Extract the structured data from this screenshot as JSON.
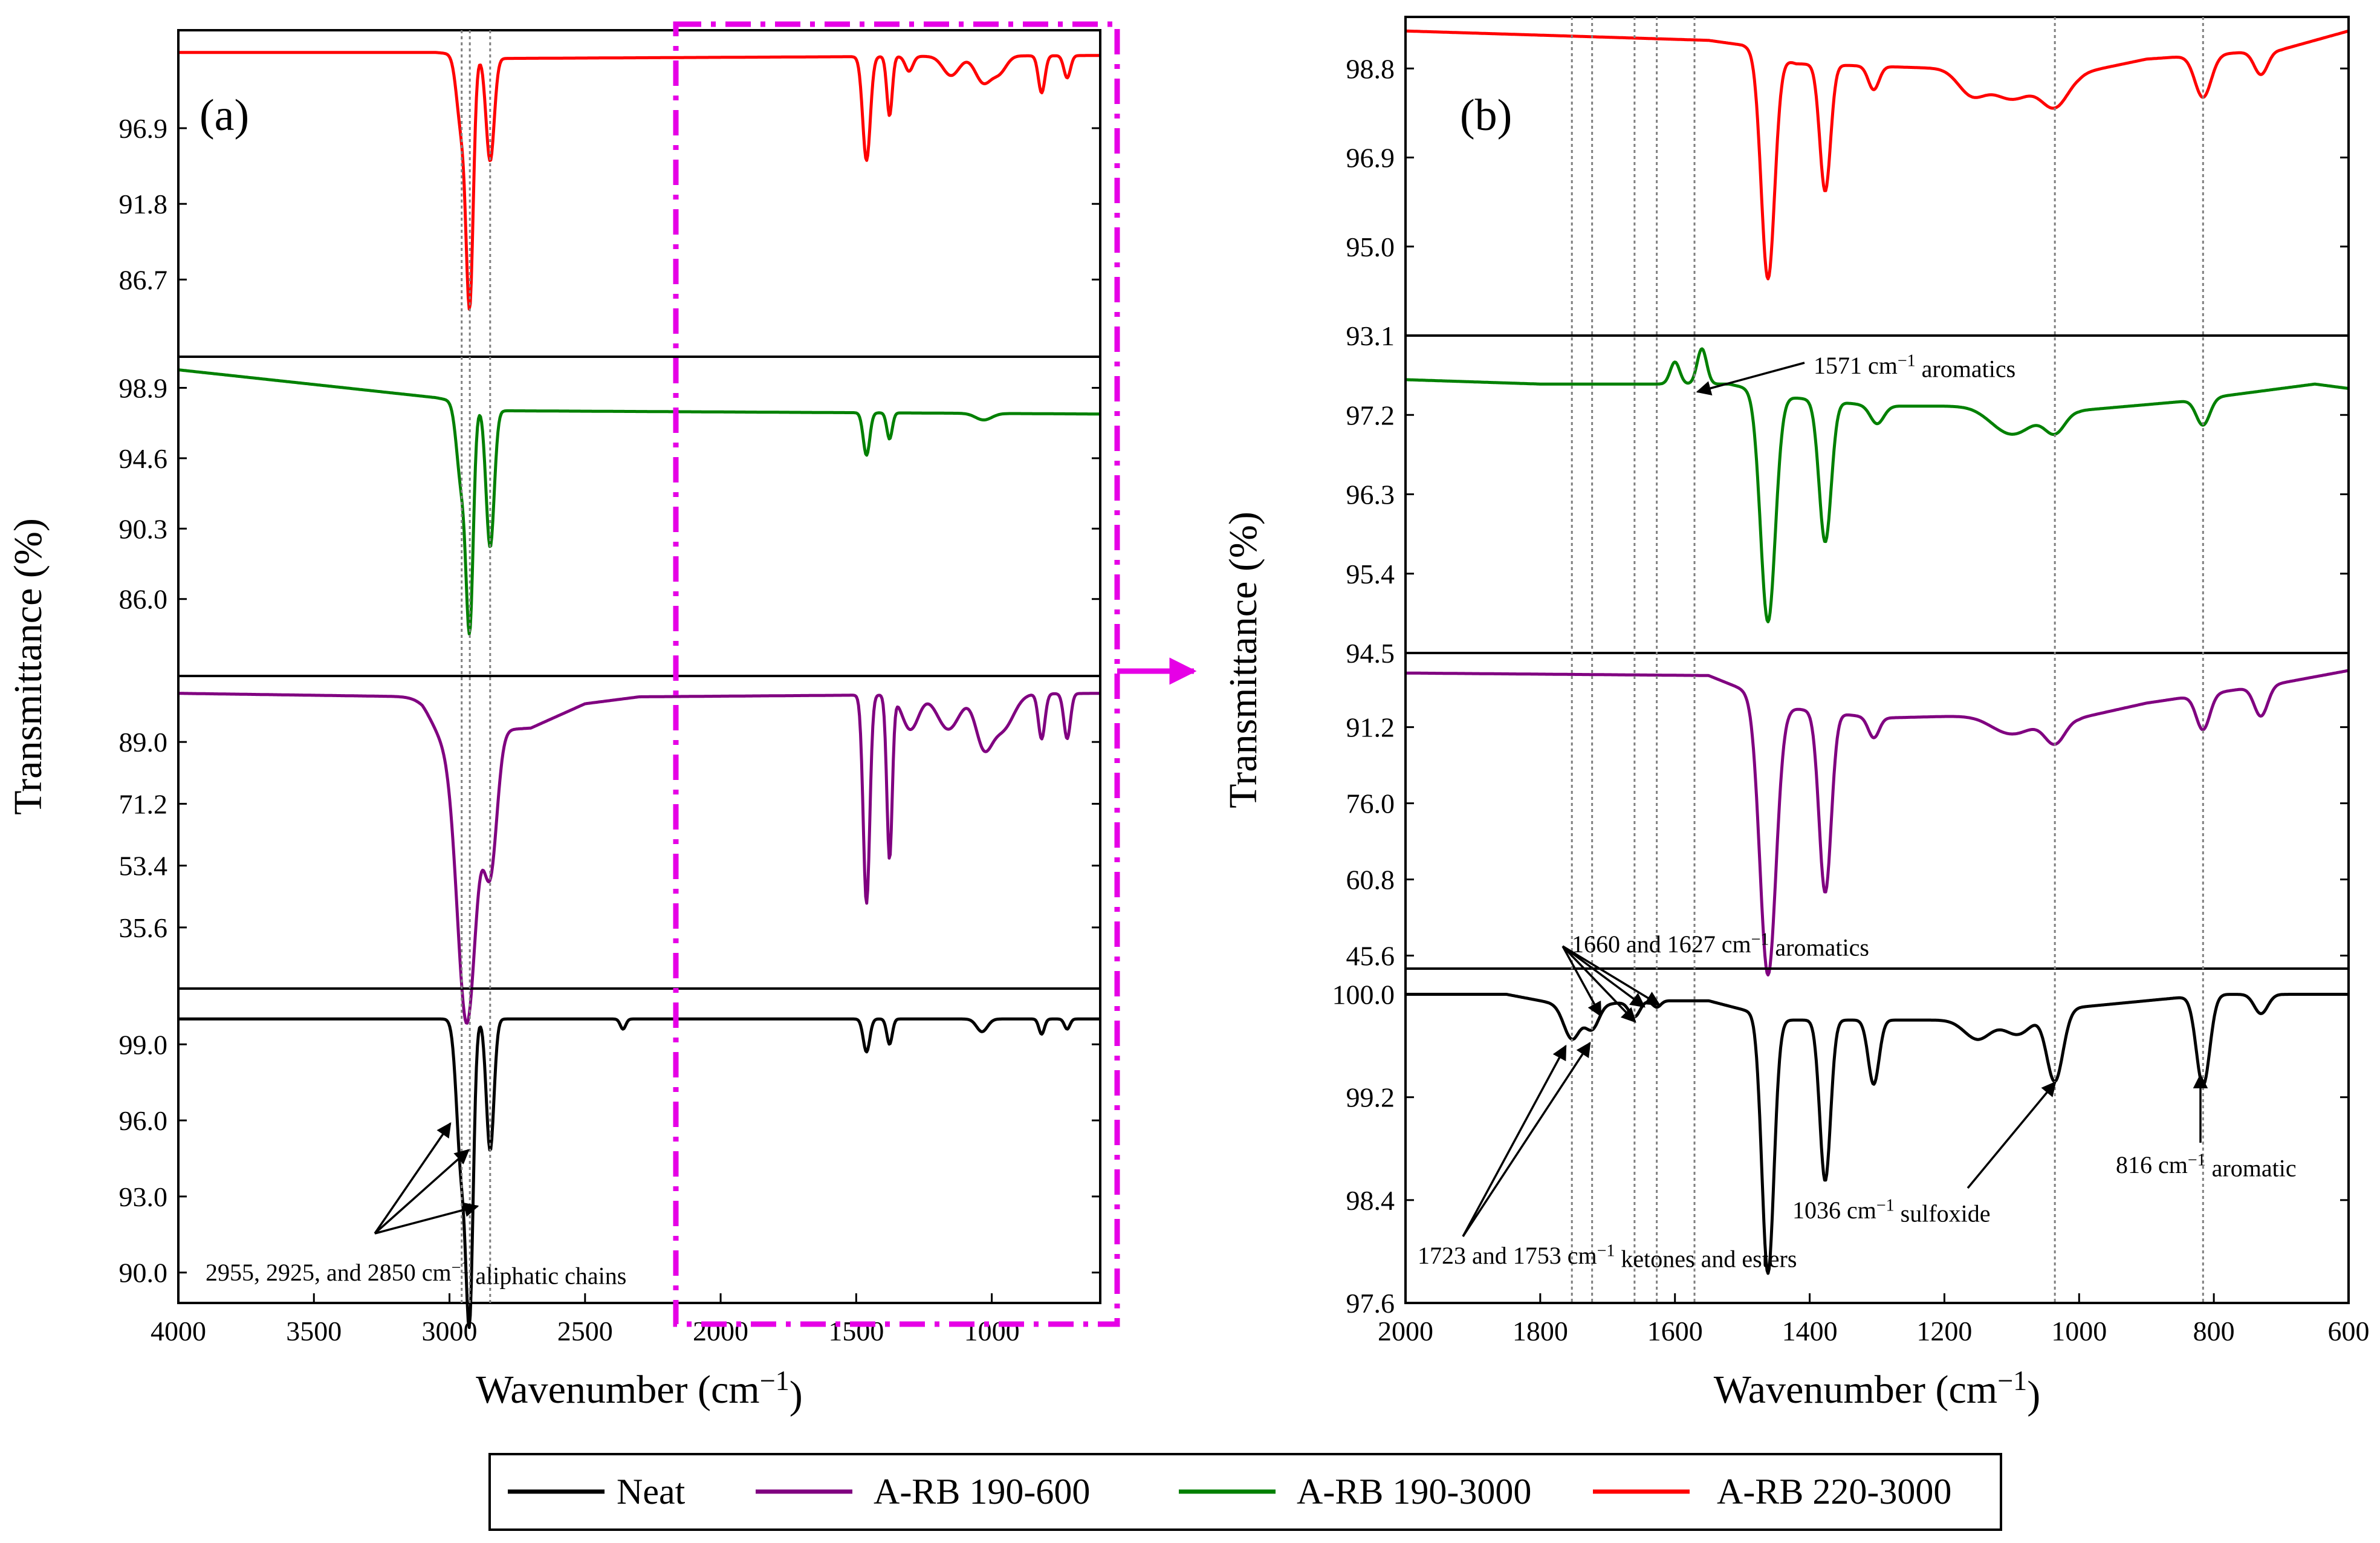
{
  "chart_data": {
    "type": "line",
    "description_note": "FTIR transmittance spectra, stacked panels",
    "series_legend": [
      {
        "name": "Neat",
        "color": "#000000"
      },
      {
        "name": "A-RB 190-600",
        "color": "#800080"
      },
      {
        "name": "A-RB 190-3000",
        "color": "#008000"
      },
      {
        "name": "A-RB 220-3000",
        "color": "#ff0000"
      }
    ],
    "ylabel": "Transmittance (%)",
    "xlabel_main": "Wavenumber (cm",
    "xlabel_sup": "−1",
    "xlabel_end": ")",
    "panels": [
      {
        "label": "(a)",
        "xlim": [
          4000,
          600
        ],
        "xticks": [
          4000,
          3500,
          3000,
          2500,
          2000,
          1500,
          1000
        ],
        "xtick_labels": [
          "4000",
          "3500",
          "3000",
          "2500",
          "2000",
          "1500",
          "1000"
        ],
        "vlines": [
          2955,
          2925,
          2850
        ],
        "subplots": [
          {
            "series": "A-RB 220-3000",
            "color": "#ff0000",
            "ylim": [
              81.5,
              103.5
            ],
            "yticks": [
              "96.9",
              "91.8",
              "86.7"
            ],
            "ytick_values": [
              96.9,
              91.8,
              86.7
            ],
            "baseline": 102.0,
            "drift": [
              [
                4000,
                102.0
              ],
              [
                3050,
                102.0
              ],
              [
                2800,
                101.6
              ],
              [
                600,
                101.8
              ]
            ],
            "peaks": [
              [
                2955,
                5.0,
                18
              ],
              [
                2925,
                15.8,
                13
              ],
              [
                2850,
                7.0,
                15
              ],
              [
                1462,
                7.0,
                14
              ],
              [
                1377,
                4.0,
                10
              ],
              [
                1305,
                1.0,
                14
              ],
              [
                1150,
                1.3,
                30
              ],
              [
                1030,
                1.8,
                30
              ],
              [
                970,
                1.0,
                25
              ],
              [
                816,
                2.5,
                12
              ],
              [
                722,
                1.5,
                12
              ]
            ]
          },
          {
            "series": "A-RB 190-3000",
            "color": "#008000",
            "ylim": [
              81.3,
              100.8
            ],
            "yticks": [
              "98.9",
              "94.6",
              "90.3",
              "86.0"
            ],
            "ytick_values": [
              98.9,
              94.6,
              90.3,
              86.0
            ],
            "baseline": 97.5,
            "drift": [
              [
                4000,
                100.0
              ],
              [
                3050,
                98.3
              ],
              [
                2800,
                97.5
              ],
              [
                600,
                97.3
              ]
            ],
            "peaks": [
              [
                2955,
                5.0,
                18
              ],
              [
                2925,
                12.7,
                13
              ],
              [
                2850,
                8.5,
                15
              ],
              [
                1462,
                2.6,
                12
              ],
              [
                1377,
                1.6,
                10
              ],
              [
                1030,
                0.4,
                30
              ]
            ]
          },
          {
            "series": "A-RB 190-600",
            "color": "#800080",
            "ylim": [
              18,
              108
            ],
            "yticks": [
              "89.0",
              "71.2",
              "53.4",
              "35.6"
            ],
            "ytick_values": [
              89.0,
              71.2,
              53.4,
              35.6
            ],
            "baseline": 103.0,
            "drift": [
              [
                4000,
                103.0
              ],
              [
                3100,
                102.0
              ],
              [
                2900,
                92.0
              ],
              [
                2700,
                93.0
              ],
              [
                2500,
                100.0
              ],
              [
                2300,
                102.0
              ],
              [
                600,
                103.0
              ]
            ],
            "peaks": [
              [
                2955,
                35.0,
                30
              ],
              [
                2925,
                55.0,
                30
              ],
              [
                2850,
                40.0,
                25
              ],
              [
                3000,
                10.0,
                60
              ],
              [
                1462,
                60.0,
                12
              ],
              [
                1377,
                47.0,
                10
              ],
              [
                1300,
                10.0,
                30
              ],
              [
                1160,
                10.0,
                40
              ],
              [
                1030,
                14.0,
                30
              ],
              [
                960,
                10.0,
                40
              ],
              [
                816,
                13.0,
                12
              ],
              [
                722,
                13.0,
                12
              ]
            ]
          },
          {
            "series": "Neat",
            "color": "#000000",
            "ylim": [
              88.8,
              101.2
            ],
            "yticks": [
              "99.0",
              "96.0",
              "93.0",
              "90.0"
            ],
            "ytick_values": [
              99.0,
              96.0,
              93.0,
              90.0
            ],
            "baseline": 100.0,
            "drift": [
              [
                4000,
                100.0
              ],
              [
                600,
                100.0
              ]
            ],
            "peaks": [
              [
                2955,
                6.0,
                18
              ],
              [
                2925,
                10.5,
                13
              ],
              [
                2850,
                5.2,
                14
              ],
              [
                2360,
                0.4,
                10
              ],
              [
                1462,
                1.3,
                12
              ],
              [
                1377,
                1.0,
                10
              ],
              [
                1036,
                0.5,
                20
              ],
              [
                816,
                0.6,
                10
              ],
              [
                722,
                0.4,
                10
              ]
            ]
          }
        ],
        "annotations": [
          {
            "text": "(a)"
          },
          {
            "text": "2955, 2925, and 2850 cm",
            "sup": "−1",
            "tail": " aliphatic chains"
          }
        ]
      },
      {
        "label": "(b)",
        "xlim": [
          2000,
          600
        ],
        "xticks": [
          2000,
          1800,
          1600,
          1400,
          1200,
          1000,
          800,
          600
        ],
        "xtick_labels": [
          "2000",
          "1800",
          "1600",
          "1400",
          "1200",
          "1000",
          "800",
          "600"
        ],
        "vlines": [
          1753,
          1723,
          1660,
          1627,
          1571,
          1036,
          816
        ],
        "subplots": [
          {
            "series": "A-RB 220-3000",
            "color": "#ff0000",
            "ylim": [
              93.1,
              99.9
            ],
            "yticks": [
              "98.8",
              "96.9",
              "95.0",
              "93.1"
            ],
            "ytick_values": [
              98.8,
              96.9,
              95.0,
              93.1
            ],
            "baseline": 99.5,
            "drift": [
              [
                2000,
                99.6
              ],
              [
                1550,
                99.4
              ],
              [
                1500,
                99.3
              ],
              [
                1420,
                98.9
              ],
              [
                1200,
                98.8
              ],
              [
                1000,
                98.7
              ],
              [
                900,
                99.0
              ],
              [
                700,
                99.2
              ],
              [
                600,
                99.6
              ]
            ],
            "peaks": [
              [
                1462,
                4.8,
                10
              ],
              [
                1377,
                2.7,
                8
              ],
              [
                1305,
                0.5,
                8
              ],
              [
                1160,
                0.5,
                20
              ],
              [
                1100,
                0.6,
                30
              ],
              [
                1036,
                0.7,
                20
              ],
              [
                816,
                0.9,
                12
              ],
              [
                730,
                0.5,
                10
              ]
            ]
          },
          {
            "series": "A-RB 190-3000",
            "color": "#008000",
            "ylim": [
              94.5,
              98.1
            ],
            "yticks": [
              "97.2",
              "96.3",
              "95.4",
              "94.5"
            ],
            "ytick_values": [
              97.2,
              96.3,
              95.4,
              94.5
            ],
            "baseline": 97.6,
            "drift": [
              [
                2000,
                97.6
              ],
              [
                1800,
                97.55
              ],
              [
                1520,
                97.55
              ],
              [
                1430,
                97.4
              ],
              [
                1300,
                97.3
              ],
              [
                1160,
                97.3
              ],
              [
                1000,
                97.25
              ],
              [
                850,
                97.35
              ],
              [
                650,
                97.55
              ],
              [
                600,
                97.5
              ]
            ],
            "peaks": [
              [
                1462,
                2.6,
                11
              ],
              [
                1377,
                1.6,
                9
              ],
              [
                1300,
                0.2,
                10
              ],
              [
                1100,
                0.3,
                30
              ],
              [
                1036,
                0.25,
                15
              ],
              [
                816,
                0.3,
                10
              ],
              [
                1600,
                -0.25,
                7
              ],
              [
                1560,
                -0.4,
                7
              ]
            ]
          },
          {
            "series": "A-RB 190-600",
            "color": "#800080",
            "ylim": [
              43,
              106
            ],
            "yticks": [
              "91.2",
              "76.0",
              "60.8",
              "45.6"
            ],
            "ytick_values": [
              91.2,
              76.0,
              60.8,
              45.6
            ],
            "baseline": 102.0,
            "drift": [
              [
                2000,
                102.0
              ],
              [
                1550,
                101.5
              ],
              [
                1430,
                95.0
              ],
              [
                1300,
                93.0
              ],
              [
                1150,
                93.5
              ],
              [
                1000,
                93.0
              ],
              [
                900,
                96.0
              ],
              [
                700,
                100.0
              ],
              [
                600,
                102.5
              ]
            ],
            "peaks": [
              [
                1462,
                55.0,
                12
              ],
              [
                1377,
                36.0,
                9
              ],
              [
                1305,
                4.0,
                8
              ],
              [
                1100,
                3.5,
                30
              ],
              [
                1036,
                5.0,
                15
              ],
              [
                816,
                7.0,
                10
              ],
              [
                730,
                6.0,
                10
              ]
            ]
          },
          {
            "series": "Neat",
            "color": "#000000",
            "ylim": [
              97.6,
              100.2
            ],
            "yticks": [
              "100.0",
              "99.2",
              "98.4",
              "97.6"
            ],
            "ytick_values": [
              100.0,
              99.2,
              98.4,
              97.6
            ],
            "baseline": 100.0,
            "drift": [
              [
                2000,
                100.0
              ],
              [
                1850,
                100.0
              ],
              [
                1750,
                99.9
              ],
              [
                1650,
                99.95
              ],
              [
                1550,
                99.95
              ],
              [
                1440,
                99.8
              ],
              [
                1300,
                99.8
              ],
              [
                1150,
                99.8
              ],
              [
                1000,
                99.9
              ],
              [
                800,
                100.0
              ],
              [
                600,
                100.0
              ]
            ],
            "peaks": [
              [
                1753,
                0.25,
                12
              ],
              [
                1723,
                0.18,
                10
              ],
              [
                1660,
                0.12,
                8
              ],
              [
                1627,
                0.05,
                6
              ],
              [
                1462,
                2.0,
                9
              ],
              [
                1377,
                1.25,
                8
              ],
              [
                1305,
                0.5,
                8
              ],
              [
                1150,
                0.15,
                20
              ],
              [
                1090,
                0.15,
                20
              ],
              [
                1036,
                0.55,
                12
              ],
              [
                816,
                0.7,
                10
              ],
              [
                730,
                0.15,
                10
              ]
            ]
          }
        ],
        "annotations": [
          {
            "text": "(b)"
          },
          {
            "text": "1571 cm",
            "sup": "−1",
            "tail": " aromatics"
          },
          {
            "text": "1660 and 1627 cm",
            "sup": "−1",
            "tail": " aromatics"
          },
          {
            "text": "1723 and 1753 cm",
            "sup": "−1",
            "tail": " ketones and esters"
          },
          {
            "text": "1036 cm",
            "sup": "−1",
            "tail": " sulfoxide"
          },
          {
            "text": "816 cm",
            "sup": "−1",
            "tail": " aromatic"
          }
        ]
      }
    ]
  },
  "colors": {
    "highlight": "#e600e6",
    "grid_lines": "#808080"
  }
}
